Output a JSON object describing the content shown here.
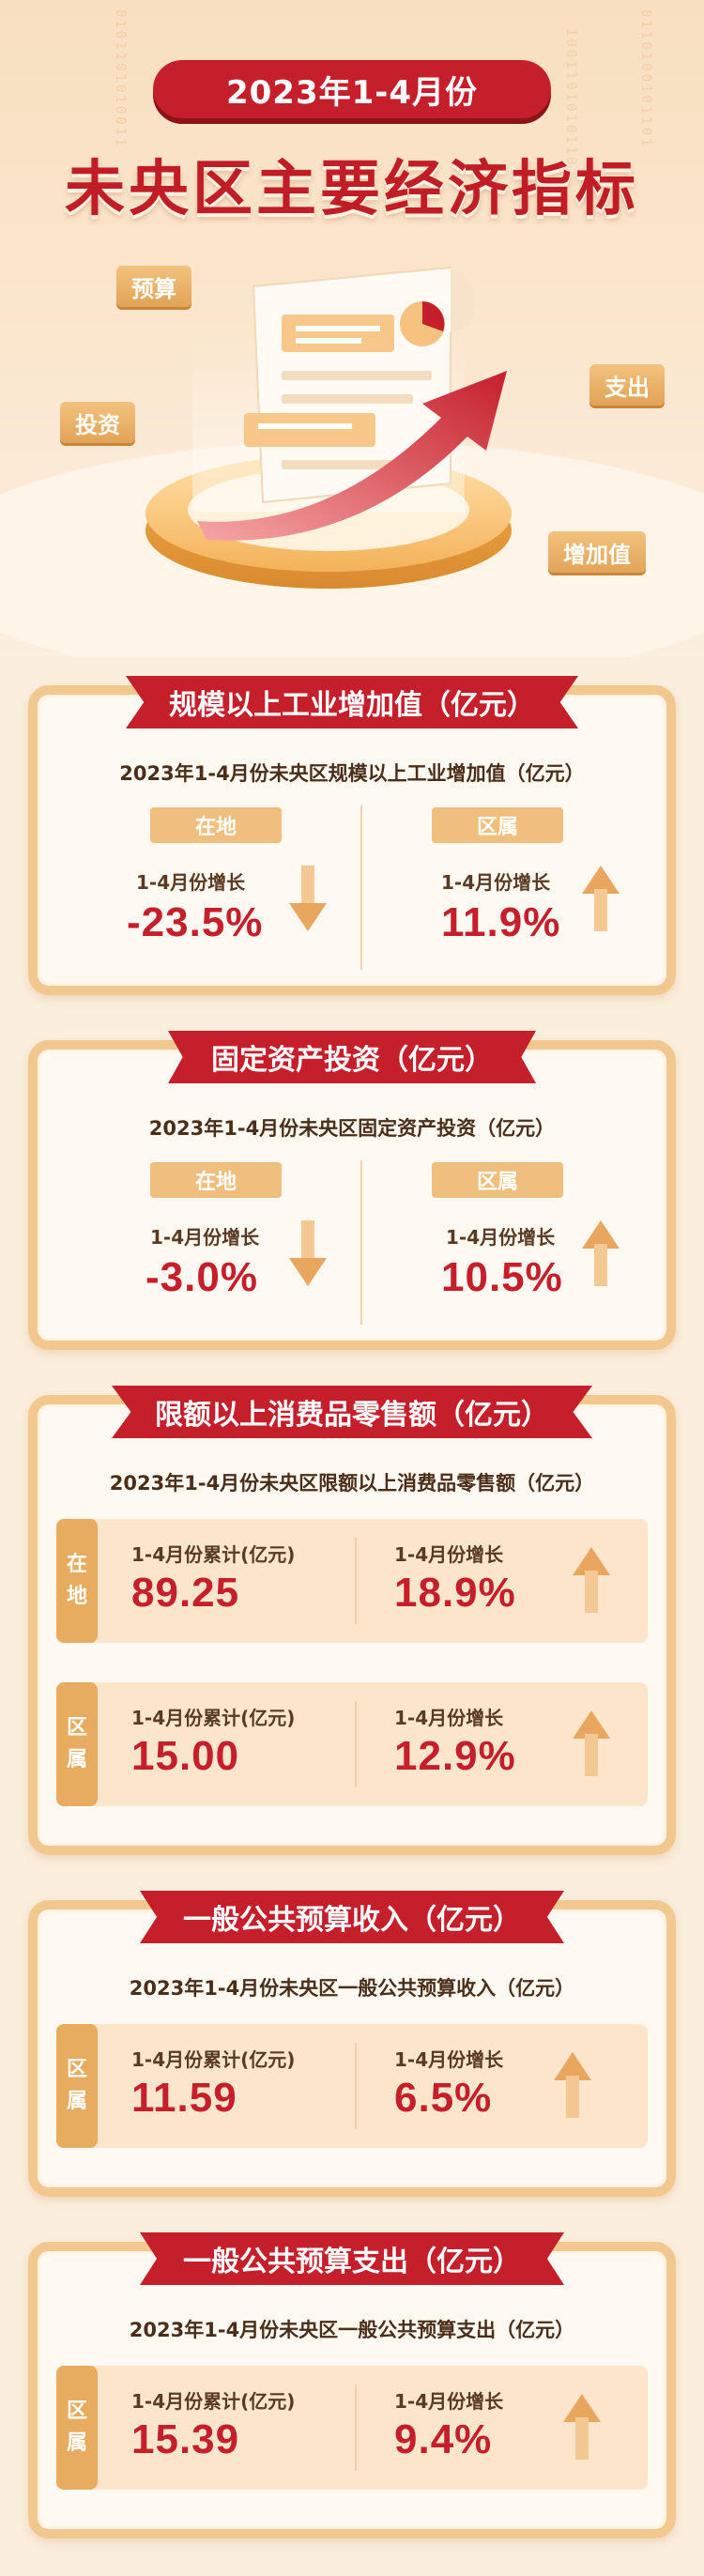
{
  "hero": {
    "period_pill": "2023年1-4月份",
    "title": "未央区主要经济指标",
    "tags": {
      "budget": "预算",
      "investment": "投资",
      "expense": "支出",
      "value_added": "增加值"
    }
  },
  "sections": {
    "industry": {
      "banner": "规模以上工业增加值（亿元）",
      "subtitle": "2023年1-4月份未央区规模以上工业增加值（亿元）",
      "left_tag": "在地",
      "left_label": "1-4月份增长",
      "left_value": "-23.5%",
      "right_tag": "区属",
      "right_label": "1-4月份增长",
      "right_value": "11.9%"
    },
    "investment": {
      "banner": "固定资产投资（亿元）",
      "subtitle": "2023年1-4月份未央区固定资产投资（亿元）",
      "left_tag": "在地",
      "left_label": "1-4月份增长",
      "left_value": "-3.0%",
      "right_tag": "区属",
      "right_label": "1-4月份增长",
      "right_value": "10.5%"
    },
    "retail": {
      "banner": "限额以上消费品零售额（亿元）",
      "subtitle": "2023年1-4月份未央区限额以上消费品零售额（亿元）",
      "rows": [
        {
          "tab_1": "在",
          "tab_2": "地",
          "total_label": "1-4月份累计(亿元)",
          "total_value": "89.25",
          "growth_label": "1-4月份增长",
          "growth_value": "18.9%"
        },
        {
          "tab_1": "区",
          "tab_2": "属",
          "total_label": "1-4月份累计(亿元)",
          "total_value": "15.00",
          "growth_label": "1-4月份增长",
          "growth_value": "12.9%"
        }
      ]
    },
    "revenue": {
      "banner": "一般公共预算收入（亿元）",
      "subtitle": "2023年1-4月份未央区一般公共预算收入（亿元）",
      "tab_1": "区",
      "tab_2": "属",
      "total_label": "1-4月份累计(亿元)",
      "total_value": "11.59",
      "growth_label": "1-4月份增长",
      "growth_value": "6.5%"
    },
    "expenditure": {
      "banner": "一般公共预算支出（亿元）",
      "subtitle": "2023年1-4月份未央区一般公共预算支出（亿元）",
      "tab_1": "区",
      "tab_2": "属",
      "total_label": "1-4月份累计(亿元)",
      "total_value": "15.39",
      "growth_label": "1-4月份增长",
      "growth_value": "9.4%"
    }
  },
  "colors": {
    "primary_red": "#c51f2b",
    "gold": "#f0bf7d",
    "card_border": "#f3c88f",
    "background": "#fbeedd"
  },
  "icons": {
    "down": "arrow-down-icon",
    "up": "arrow-up-icon"
  }
}
